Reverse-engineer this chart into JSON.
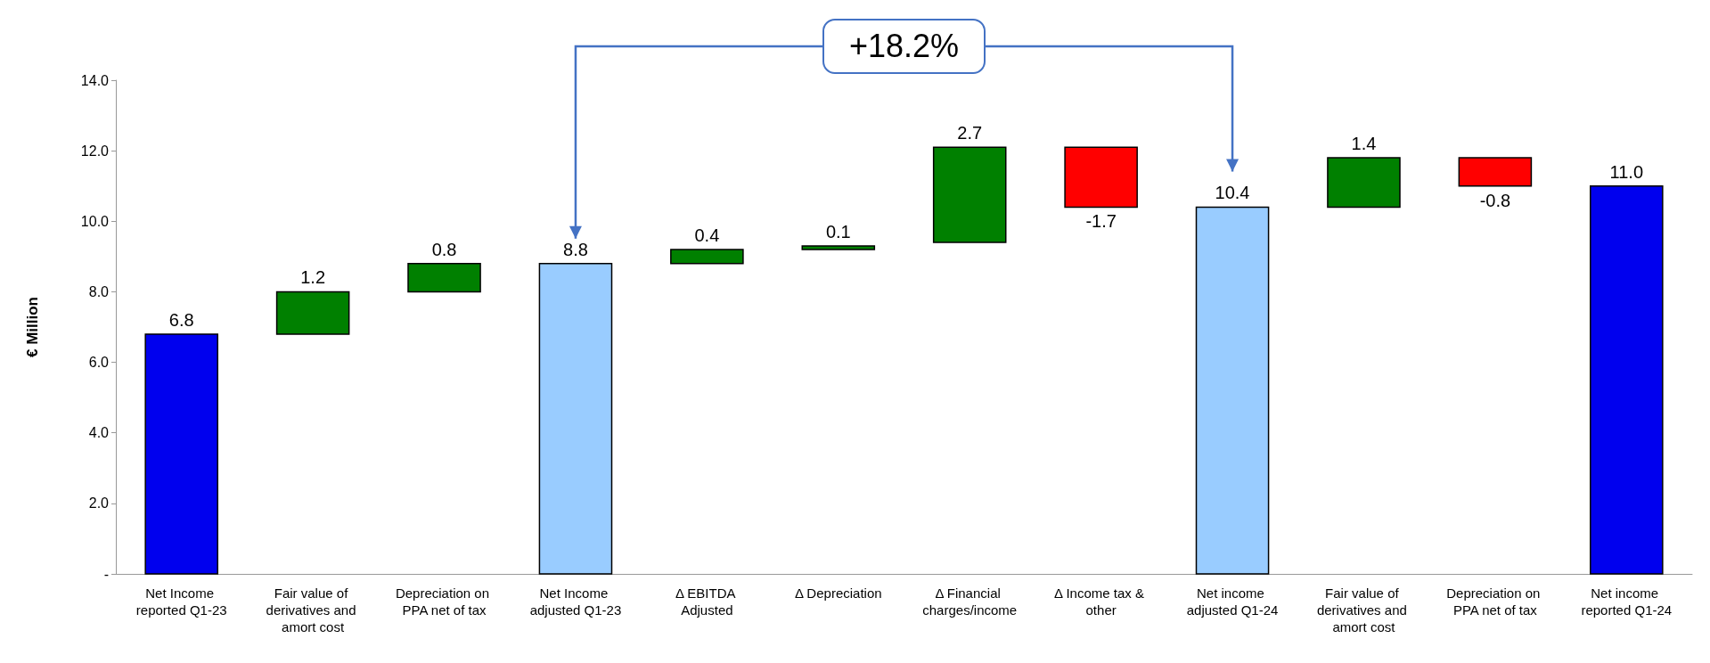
{
  "chart_data": {
    "type": "bar",
    "ylabel": "€ Million",
    "categories": [
      "Net Income reported Q1-23",
      "Fair value of derivatives and amort cost",
      "Depreciation on PPA net of tax",
      "Net Income adjusted Q1-23",
      "Δ EBITDA Adjusted",
      "Δ Depreciation",
      "Δ Financial charges/income",
      "Δ Income tax & other",
      "Net income adjusted Q1-24",
      "Fair value of derivatives and amort cost",
      "Depreciation on PPA net of tax",
      "Net income reported Q1-24"
    ],
    "values": [
      6.8,
      1.2,
      0.8,
      8.8,
      0.4,
      0.1,
      2.7,
      -1.7,
      10.4,
      1.4,
      -0.8,
      11.0
    ],
    "base": [
      0,
      6.8,
      8.0,
      0,
      8.8,
      9.2,
      9.4,
      12.1,
      0,
      10.4,
      11.8,
      0
    ],
    "colors": [
      "#0000ee",
      "#008000",
      "#008000",
      "#99ccff",
      "#008000",
      "#008000",
      "#008000",
      "#ff0000",
      "#99ccff",
      "#008000",
      "#ff0000",
      "#0000ee"
    ],
    "value_labels": [
      "6.8",
      "1.2",
      "0.8",
      "8.8",
      "0.4",
      "0.1",
      "2.7",
      "-1.7",
      "10.4",
      "1.4",
      "-0.8",
      "11.0"
    ],
    "ylim": [
      0,
      14
    ],
    "yticks": [
      {
        "value": 0,
        "label": "-"
      },
      {
        "value": 2,
        "label": "2.0"
      },
      {
        "value": 4,
        "label": "4.0"
      },
      {
        "value": 6,
        "label": "6.0"
      },
      {
        "value": 8,
        "label": "8.0"
      },
      {
        "value": 10,
        "label": "10.0"
      },
      {
        "value": 12,
        "label": "12.0"
      },
      {
        "value": 14,
        "label": "14.0"
      }
    ],
    "grid": false,
    "annotations": [
      "+18.2%"
    ]
  }
}
